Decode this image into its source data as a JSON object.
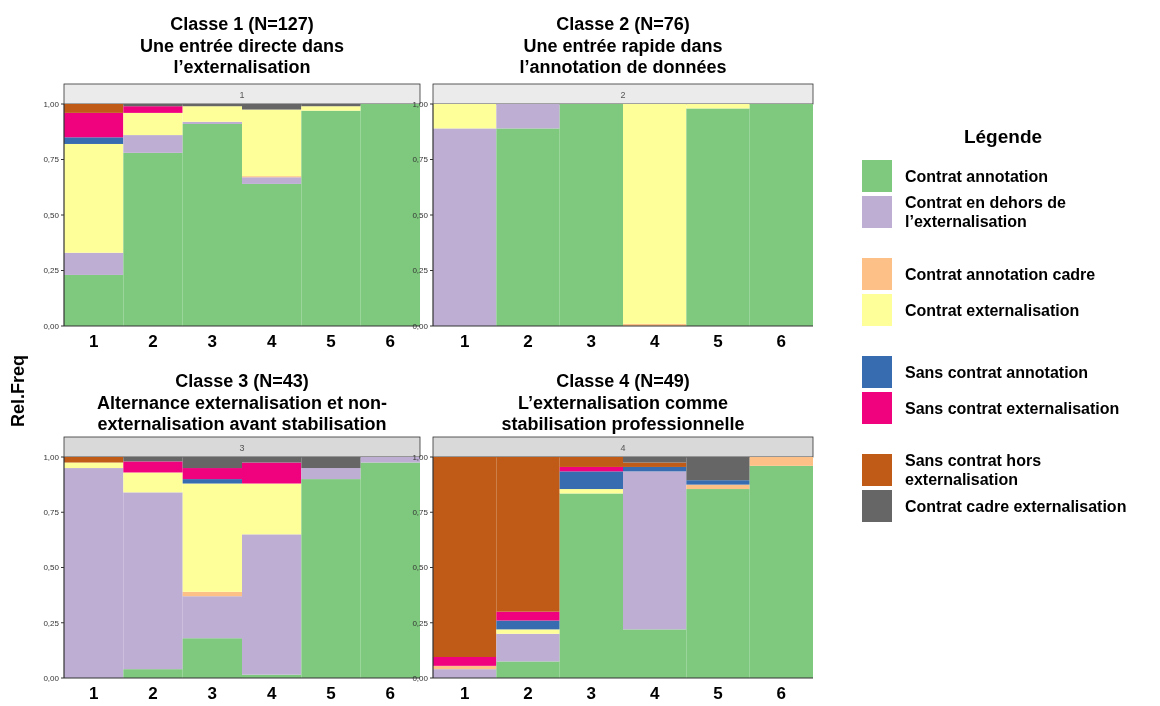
{
  "chart_data": [
    {
      "type": "bar",
      "stacked": true,
      "title": "Classe 1 (N=127)\nUne entrée directe dans\nl’externalisation",
      "subtitle": "1",
      "ylabel": "Rel.Freq",
      "legend_title": "Légende",
      "legend": "right",
      "grid": false,
      "categories": [
        "1",
        "2",
        "3",
        "4",
        "5",
        "6"
      ],
      "ylim": [
        0,
        1
      ],
      "yticks": [
        {
          "value": 0,
          "label": "0,00"
        },
        {
          "value": 0.25,
          "label": "0,25"
        },
        {
          "value": 0.5,
          "label": "0,50"
        },
        {
          "value": 0.75,
          "label": "0,75"
        },
        {
          "value": 1,
          "label": "1,00"
        }
      ],
      "series": [
        {
          "name": "Contrat annotation",
          "color": "#7fc97f",
          "values": [
            0.23,
            0.78,
            0.91,
            0.64,
            0.97,
            1
          ]
        },
        {
          "name": "Contrat en dehors de l’externalisation",
          "color": "#beaed4",
          "values": [
            0.1,
            0.08,
            0.01,
            0.03,
            0,
            0
          ]
        },
        {
          "name": "Contrat annotation cadre",
          "color": "#fdc086",
          "values": [
            0,
            0,
            0,
            0.005,
            0,
            0
          ]
        },
        {
          "name": "Contrat externalisation",
          "color": "#ffff99",
          "values": [
            0.49,
            0.1,
            0.07,
            0.3,
            0.02,
            0
          ]
        },
        {
          "name": "Sans contrat annotation",
          "color": "#386cb0",
          "values": [
            0.03,
            0,
            0,
            0,
            0,
            0
          ]
        },
        {
          "name": "Sans contrat externalisation",
          "color": "#f0027f",
          "values": [
            0.11,
            0.03,
            0,
            0,
            0,
            0
          ]
        },
        {
          "name": "Sans contrat hors externalisation",
          "color": "#bf5b17",
          "values": [
            0.04,
            0,
            0,
            0,
            0,
            0
          ]
        },
        {
          "name": "Contrat cadre externalisation",
          "color": "#666666",
          "values": [
            0,
            0.01,
            0.01,
            0.025,
            0.01,
            0
          ]
        }
      ]
    },
    {
      "type": "bar",
      "stacked": true,
      "title": "Classe 2 (N=76)\nUne entrée rapide dans\nl’annotation de données",
      "subtitle": "2",
      "grid": false,
      "categories": [
        "1",
        "2",
        "3",
        "4",
        "5",
        "6"
      ],
      "ylim": [
        0,
        1
      ],
      "yticks": [
        {
          "value": 0,
          "label": "0,00"
        },
        {
          "value": 0.25,
          "label": "0,25"
        },
        {
          "value": 0.5,
          "label": "0,50"
        },
        {
          "value": 0.75,
          "label": "0,75"
        },
        {
          "value": 1,
          "label": "1,00"
        }
      ],
      "series": [
        {
          "color": "#7fc97f",
          "values": [
            0,
            0.89,
            1,
            0,
            0.98,
            1
          ]
        },
        {
          "color": "#beaed4",
          "values": [
            0.89,
            0.11,
            0,
            0,
            0,
            0
          ]
        },
        {
          "color": "#fdc086",
          "values": [
            0,
            0,
            0,
            0.01,
            0,
            0
          ]
        },
        {
          "color": "#ffff99",
          "values": [
            0.11,
            0,
            0,
            0.99,
            0.02,
            0
          ]
        }
      ]
    },
    {
      "type": "bar",
      "stacked": true,
      "title": "Classe 3 (N=43)\nAlternance externalisation et non-\nexternalisation avant stabilisation",
      "subtitle": "3",
      "grid": false,
      "categories": [
        "1",
        "2",
        "3",
        "4",
        "5",
        "6"
      ],
      "ylim": [
        0,
        1
      ],
      "yticks": [
        {
          "value": 0,
          "label": "0,00"
        },
        {
          "value": 0.25,
          "label": "0,25"
        },
        {
          "value": 0.5,
          "label": "0,50"
        },
        {
          "value": 0.75,
          "label": "0,75"
        },
        {
          "value": 1,
          "label": "1,00"
        }
      ],
      "series": [
        {
          "color": "#7fc97f",
          "values": [
            0,
            0.04,
            0.18,
            0.015,
            0.9,
            0.975
          ]
        },
        {
          "color": "#beaed4",
          "values": [
            0.95,
            0.8,
            0.19,
            0.635,
            0.05,
            0.025
          ]
        },
        {
          "color": "#fdc086",
          "values": [
            0,
            0,
            0.02,
            0,
            0,
            0
          ]
        },
        {
          "color": "#ffff99",
          "values": [
            0.025,
            0.09,
            0.49,
            0.23,
            0,
            0
          ]
        },
        {
          "color": "#386cb0",
          "values": [
            0,
            0,
            0.02,
            0,
            0,
            0
          ]
        },
        {
          "color": "#f0027f",
          "values": [
            0,
            0.05,
            0.05,
            0.095,
            0,
            0
          ]
        },
        {
          "color": "#bf5b17",
          "values": [
            0.025,
            0,
            0,
            0,
            0,
            0
          ]
        },
        {
          "color": "#666666",
          "values": [
            0,
            0.02,
            0.05,
            0.025,
            0.05,
            0
          ]
        }
      ]
    },
    {
      "type": "bar",
      "stacked": true,
      "title": "Classe 4 (N=49)\nL’externalisation comme\nstabilisation professionnelle",
      "subtitle": "4",
      "grid": false,
      "categories": [
        "1",
        "2",
        "3",
        "4",
        "5",
        "6"
      ],
      "ylim": [
        0,
        1
      ],
      "yticks": [
        {
          "value": 0,
          "label": "0,00"
        },
        {
          "value": 0.25,
          "label": "0,25"
        },
        {
          "value": 0.5,
          "label": "0,50"
        },
        {
          "value": 0.75,
          "label": "0,75"
        },
        {
          "value": 1,
          "label": "1,00"
        }
      ],
      "series": [
        {
          "color": "#7fc97f",
          "values": [
            0,
            0.075,
            0.835,
            0.22,
            0.855,
            0.96
          ]
        },
        {
          "color": "#beaed4",
          "values": [
            0.04,
            0.125,
            0,
            0.715,
            0,
            0
          ]
        },
        {
          "color": "#fdc086",
          "values": [
            0.015,
            0,
            0,
            0,
            0.02,
            0.04
          ]
        },
        {
          "color": "#ffff99",
          "values": [
            0,
            0.02,
            0.02,
            0,
            0,
            0
          ]
        },
        {
          "color": "#386cb0",
          "values": [
            0,
            0.04,
            0.08,
            0.02,
            0.02,
            0
          ]
        },
        {
          "color": "#f0027f",
          "values": [
            0.04,
            0.04,
            0.02,
            0,
            0,
            0
          ]
        },
        {
          "color": "#bf5b17",
          "values": [
            0.905,
            0.7,
            0.045,
            0.02,
            0,
            0
          ]
        },
        {
          "color": "#666666",
          "values": [
            0,
            0,
            0,
            0.025,
            0.105,
            0
          ]
        }
      ]
    }
  ]
}
